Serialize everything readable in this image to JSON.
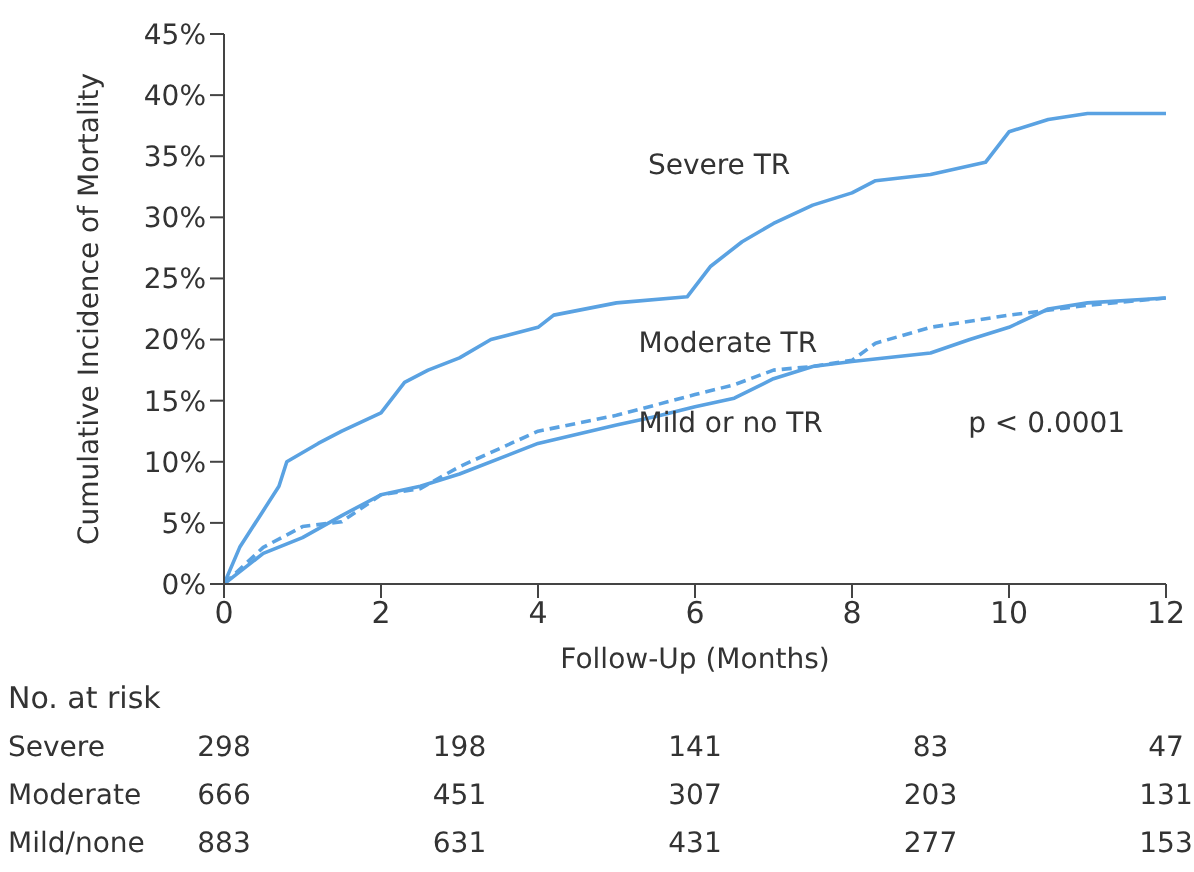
{
  "chart_data": {
    "type": "line",
    "xlabel": "Follow-Up (Months)",
    "ylabel": "Cumulative Incidence of Mortality",
    "xlim": [
      0,
      12
    ],
    "xticks": [
      0,
      2,
      4,
      6,
      8,
      10,
      12
    ],
    "ylim": [
      0,
      45
    ],
    "yticks": [
      {
        "value": 0,
        "label": "0%"
      },
      {
        "value": 5,
        "label": "5%"
      },
      {
        "value": 10,
        "label": "10%"
      },
      {
        "value": 15,
        "label": "15%"
      },
      {
        "value": 20,
        "label": "20%"
      },
      {
        "value": 25,
        "label": "25%"
      },
      {
        "value": 30,
        "label": "30%"
      },
      {
        "value": 35,
        "label": "35%"
      },
      {
        "value": 40,
        "label": "40%"
      },
      {
        "value": 45,
        "label": "45%"
      }
    ],
    "series": [
      {
        "name": "Severe TR",
        "color": "#5aa2e2",
        "line_style": "solid",
        "x": [
          0,
          0.2,
          0.5,
          0.7,
          0.8,
          1.2,
          1.5,
          2,
          2.3,
          2.6,
          3,
          3.4,
          4,
          4.2,
          5,
          5.9,
          6.2,
          6.6,
          7,
          7.5,
          8,
          8.3,
          9,
          9.7,
          10,
          10.5,
          11,
          12
        ],
        "values": [
          0,
          3,
          6,
          8,
          10,
          11.5,
          12.5,
          14,
          16.5,
          17.5,
          18.5,
          20,
          21,
          22,
          23,
          23.5,
          26,
          28,
          29.5,
          31,
          32,
          33,
          33.5,
          34.5,
          37,
          38,
          38.5,
          38.5
        ]
      },
      {
        "name": "Moderate TR",
        "color": "#5aa2e2",
        "line_style": "dashed",
        "x": [
          0,
          0.5,
          1,
          1.5,
          2,
          2.5,
          3,
          4,
          5,
          6,
          6.5,
          7,
          7.5,
          8,
          8.3,
          9,
          10,
          11,
          12
        ],
        "values": [
          0,
          3,
          4.7,
          5.1,
          7.3,
          7.8,
          9.6,
          12.5,
          13.8,
          15.5,
          16.3,
          17.5,
          17.8,
          18.3,
          19.7,
          21,
          22,
          22.8,
          23.4
        ]
      },
      {
        "name": "Mild or no TR",
        "color": "#5aa2e2",
        "line_style": "solid",
        "x": [
          0,
          0.5,
          1,
          1.5,
          2,
          2.5,
          3,
          4,
          5,
          5.5,
          6,
          6.5,
          7,
          7.5,
          8,
          9,
          9.5,
          10,
          10.5,
          11,
          12
        ],
        "values": [
          0,
          2.5,
          3.8,
          5.6,
          7.3,
          8,
          9,
          11.5,
          13,
          13.7,
          14.5,
          15.2,
          16.8,
          17.8,
          18.2,
          18.9,
          20,
          21,
          22.5,
          23,
          23.4
        ]
      }
    ],
    "annotations": [
      "p < 0.0001",
      "No. at risk",
      "Severe",
      "298",
      "198",
      "141",
      "83",
      "47",
      "Moderate",
      "666",
      "451",
      "307",
      "203",
      "131",
      "Mild/none",
      "883",
      "631",
      "431",
      "277",
      "153"
    ]
  }
}
